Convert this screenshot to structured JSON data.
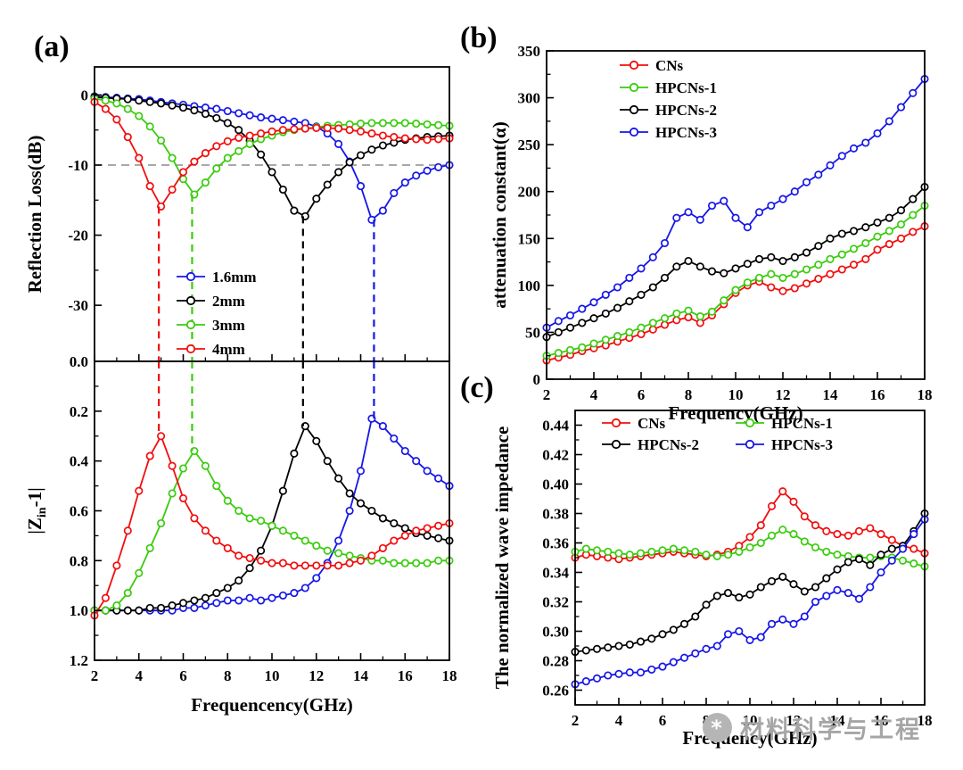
{
  "panels": {
    "a_label": "(a)",
    "b_label": "(b)",
    "c_label": "(c)"
  },
  "watermark": {
    "text": "材料科学与工程",
    "icon": "circle-star-logo",
    "color": "#a6a6a6"
  },
  "palette": {
    "red": "#f20d0d",
    "green": "#39cc0d",
    "blue": "#1616e8",
    "black": "#000000",
    "ref_gray": "#8c8c8c"
  },
  "chart_data": [
    {
      "id": "chart-rl",
      "type": "line",
      "title": "",
      "xlabel": "",
      "ylabel": "Reflection Loss(dB)",
      "xlim": [
        2,
        18
      ],
      "x_ticks": [
        2,
        4,
        6,
        8,
        10,
        12,
        14,
        16,
        18
      ],
      "x_tick_labels": [],
      "y_top": 4,
      "y_bottom": -38,
      "y_ticks": [
        0,
        -10,
        -20,
        -30
      ],
      "y_tick_labels": [
        "0",
        "-10",
        "-20",
        "-30"
      ],
      "grid": false,
      "legend_position": "center-left",
      "x_start": 2,
      "x_step": 0.5,
      "ref_lines": [
        {
          "type": "h",
          "y": -10,
          "color": "#8c8c8c"
        }
      ],
      "vlines": [
        {
          "x": 4.9,
          "y": -15.9,
          "from_edge": "bottom",
          "color": "#f20d0d"
        },
        {
          "x": 6.4,
          "y": -14.2,
          "from_edge": "bottom",
          "color": "#39cc0d"
        },
        {
          "x": 11.4,
          "y": -17.3,
          "from_edge": "bottom",
          "color": "#000000"
        },
        {
          "x": 14.6,
          "y": -17.8,
          "from_edge": "bottom",
          "color": "#1616e8"
        }
      ],
      "series": [
        {
          "name": "1.6mm",
          "color": "#1616e8",
          "values": [
            -0.2,
            -0.3,
            -0.4,
            -0.5,
            -0.6,
            -0.8,
            -1,
            -1.2,
            -1.4,
            -1.6,
            -1.8,
            -2,
            -2.3,
            -2.6,
            -2.9,
            -3.2,
            -3.4,
            -3.6,
            -3.8,
            -4,
            -4.5,
            -5.5,
            -7,
            -9.5,
            -13,
            -17.8,
            -16.5,
            -14,
            -12.5,
            -11.5,
            -10.8,
            -10.3,
            -10
          ]
        },
        {
          "name": "2mm",
          "color": "#000000",
          "values": [
            -0.3,
            -0.4,
            -0.5,
            -0.6,
            -0.8,
            -1,
            -1.2,
            -1.5,
            -1.8,
            -2.2,
            -2.7,
            -3.3,
            -4,
            -5,
            -6.5,
            -8.5,
            -11,
            -13.5,
            -16.5,
            -17.3,
            -14.8,
            -12.8,
            -11,
            -9.6,
            -8.6,
            -7.8,
            -7.2,
            -6.8,
            -6.4,
            -6.2,
            -6,
            -5.9,
            -5.8
          ]
        },
        {
          "name": "3mm",
          "color": "#39cc0d",
          "values": [
            -0.5,
            -0.8,
            -1.2,
            -2,
            -3,
            -4.5,
            -6.5,
            -9,
            -12,
            -14.2,
            -12.5,
            -10.5,
            -9,
            -8,
            -7,
            -6.3,
            -5.8,
            -5.3,
            -5,
            -4.8,
            -4.6,
            -4.4,
            -4.3,
            -4.2,
            -4.1,
            -4,
            -4,
            -4,
            -4,
            -4.1,
            -4.2,
            -4.3,
            -4.4
          ]
        },
        {
          "name": "4mm",
          "color": "#f20d0d",
          "values": [
            -1,
            -2,
            -3.5,
            -6,
            -9,
            -13,
            -15.9,
            -13.5,
            -11,
            -9.5,
            -8.3,
            -7.3,
            -6.6,
            -6.1,
            -5.8,
            -5.5,
            -5.2,
            -5,
            -4.9,
            -4.8,
            -4.7,
            -4.7,
            -4.8,
            -5,
            -5.2,
            -5.5,
            -5.8,
            -6,
            -6.2,
            -6.3,
            -6.4,
            -6.3,
            -6.2
          ]
        }
      ]
    },
    {
      "id": "chart-zin",
      "type": "line",
      "title": "",
      "xlabel": "Frequencency(GHz)",
      "ylabel": "|Zin-1|",
      "ylabel_parts": {
        "pre": "|Z",
        "sub": "in",
        "post": "-1|"
      },
      "xlim": [
        2,
        18
      ],
      "x_ticks": [
        2,
        4,
        6,
        8,
        10,
        12,
        14,
        16,
        18
      ],
      "x_tick_labels": [
        "2",
        "4",
        "6",
        "8",
        "10",
        "12",
        "14",
        "16",
        "18"
      ],
      "y_top": 0,
      "y_bottom": 1.2,
      "y_ticks": [
        0,
        0.2,
        0.4,
        0.6,
        0.8,
        1,
        1.2
      ],
      "y_tick_labels": [
        "0.0",
        "0.2",
        "0.4",
        "0.6",
        "0.8",
        "1.0",
        "1.2"
      ],
      "grid": false,
      "legend_position": "none",
      "x_start": 2,
      "x_step": 0.5,
      "ref_lines": [],
      "vlines": [
        {
          "x": 4.9,
          "y": 0.3,
          "from_edge": "top",
          "color": "#f20d0d"
        },
        {
          "x": 6.4,
          "y": 0.36,
          "from_edge": "top",
          "color": "#39cc0d"
        },
        {
          "x": 11.4,
          "y": 0.26,
          "from_edge": "top",
          "color": "#000000"
        },
        {
          "x": 14.6,
          "y": 0.23,
          "from_edge": "top",
          "color": "#1616e8"
        }
      ],
      "series": [
        {
          "name": "1.6mm",
          "color": "#1616e8",
          "values": [
            1,
            1,
            1,
            1,
            1,
            1,
            1,
            1,
            0.99,
            0.99,
            0.98,
            0.97,
            0.96,
            0.96,
            0.95,
            0.96,
            0.95,
            0.94,
            0.93,
            0.91,
            0.87,
            0.81,
            0.72,
            0.6,
            0.44,
            0.23,
            0.26,
            0.31,
            0.36,
            0.4,
            0.44,
            0.47,
            0.5
          ]
        },
        {
          "name": "2mm",
          "color": "#000000",
          "values": [
            1,
            1,
            1,
            1,
            1,
            0.99,
            0.99,
            0.98,
            0.97,
            0.96,
            0.95,
            0.93,
            0.91,
            0.88,
            0.83,
            0.76,
            0.66,
            0.52,
            0.37,
            0.26,
            0.32,
            0.4,
            0.47,
            0.53,
            0.57,
            0.6,
            0.63,
            0.65,
            0.67,
            0.69,
            0.7,
            0.71,
            0.72
          ]
        },
        {
          "name": "3mm",
          "color": "#39cc0d",
          "values": [
            1,
            1,
            0.98,
            0.93,
            0.85,
            0.75,
            0.65,
            0.53,
            0.43,
            0.36,
            0.42,
            0.5,
            0.56,
            0.6,
            0.63,
            0.64,
            0.66,
            0.68,
            0.7,
            0.72,
            0.74,
            0.76,
            0.77,
            0.78,
            0.79,
            0.8,
            0.8,
            0.81,
            0.81,
            0.81,
            0.81,
            0.8,
            0.8
          ]
        },
        {
          "name": "4mm",
          "color": "#f20d0d",
          "values": [
            1.02,
            0.95,
            0.82,
            0.68,
            0.52,
            0.38,
            0.3,
            0.42,
            0.55,
            0.63,
            0.68,
            0.72,
            0.75,
            0.78,
            0.79,
            0.8,
            0.81,
            0.81,
            0.82,
            0.82,
            0.82,
            0.82,
            0.82,
            0.81,
            0.8,
            0.78,
            0.75,
            0.72,
            0.7,
            0.68,
            0.67,
            0.66,
            0.65
          ]
        }
      ]
    },
    {
      "id": "chart-attenuation",
      "type": "line",
      "title": "",
      "xlabel": "Frequency(GHz)",
      "ylabel": "attenuation constant(α)",
      "xlim": [
        2,
        18
      ],
      "x_ticks": [
        2,
        4,
        6,
        8,
        10,
        12,
        14,
        16,
        18
      ],
      "x_tick_labels": [
        "2",
        "4",
        "6",
        "8",
        "10",
        "12",
        "14",
        "16",
        "18"
      ],
      "y_top": 350,
      "y_bottom": 0,
      "y_ticks": [
        0,
        50,
        100,
        150,
        200,
        250,
        300,
        350
      ],
      "y_tick_labels": [
        "0",
        "50",
        "100",
        "150",
        "200",
        "250",
        "300",
        "350"
      ],
      "grid": false,
      "legend_position": "top-left",
      "x_start": 2,
      "x_step": 0.5,
      "ref_lines": [],
      "vlines": [],
      "series": [
        {
          "name": "CNs",
          "color": "#f20d0d",
          "values": [
            20,
            23,
            26,
            30,
            33,
            36,
            40,
            44,
            48,
            53,
            58,
            63,
            66,
            60,
            68,
            80,
            92,
            100,
            104,
            98,
            94,
            97,
            102,
            107,
            112,
            117,
            122,
            128,
            138,
            144,
            150,
            157,
            163
          ]
        },
        {
          "name": "HPCNs-1",
          "color": "#39cc0d",
          "values": [
            25,
            28,
            31,
            34,
            38,
            42,
            46,
            50,
            55,
            60,
            65,
            70,
            73,
            67,
            72,
            84,
            95,
            103,
            108,
            112,
            108,
            112,
            117,
            122,
            128,
            133,
            139,
            145,
            152,
            158,
            165,
            175,
            185
          ]
        },
        {
          "name": "HPCNs-2",
          "color": "#000000",
          "values": [
            45,
            50,
            55,
            60,
            65,
            70,
            76,
            83,
            90,
            98,
            108,
            120,
            126,
            120,
            115,
            113,
            118,
            123,
            128,
            130,
            126,
            130,
            135,
            142,
            150,
            155,
            158,
            162,
            167,
            172,
            180,
            192,
            205
          ]
        },
        {
          "name": "HPCNs-3",
          "color": "#1616e8",
          "values": [
            55,
            62,
            68,
            75,
            82,
            90,
            98,
            108,
            118,
            130,
            145,
            172,
            178,
            170,
            185,
            190,
            172,
            162,
            178,
            185,
            192,
            200,
            210,
            218,
            228,
            238,
            246,
            252,
            262,
            275,
            290,
            305,
            320
          ]
        }
      ]
    },
    {
      "id": "chart-impedance",
      "type": "line",
      "title": "",
      "xlabel": "Frequency(GHz)",
      "ylabel": "The normalized wave impedance",
      "xlim": [
        2,
        18
      ],
      "x_ticks": [
        2,
        4,
        6,
        8,
        10,
        12,
        14,
        16,
        18
      ],
      "x_tick_labels": [
        "2",
        "4",
        "6",
        "8",
        "10",
        "12",
        "14",
        "16",
        "18"
      ],
      "y_top": 0.45,
      "y_bottom": 0.25,
      "y_ticks": [
        0.26,
        0.28,
        0.3,
        0.32,
        0.34,
        0.36,
        0.38,
        0.4,
        0.42,
        0.44
      ],
      "y_tick_labels": [
        "0.26",
        "0.28",
        "0.30",
        "0.32",
        "0.34",
        "0.36",
        "0.38",
        "0.40",
        "0.42",
        "0.44"
      ],
      "grid": false,
      "legend_position": "top-center-2col",
      "x_start": 2,
      "x_step": 0.5,
      "ref_lines": [],
      "vlines": [],
      "series": [
        {
          "name": "CNs",
          "color": "#f20d0d",
          "values": [
            0.35,
            0.352,
            0.351,
            0.35,
            0.349,
            0.35,
            0.351,
            0.352,
            0.353,
            0.354,
            0.353,
            0.352,
            0.351,
            0.352,
            0.354,
            0.358,
            0.364,
            0.372,
            0.385,
            0.395,
            0.388,
            0.378,
            0.372,
            0.368,
            0.366,
            0.365,
            0.368,
            0.37,
            0.366,
            0.362,
            0.358,
            0.356,
            0.353
          ]
        },
        {
          "name": "HPCNs-1",
          "color": "#39cc0d",
          "values": [
            0.354,
            0.356,
            0.355,
            0.354,
            0.353,
            0.352,
            0.353,
            0.354,
            0.355,
            0.356,
            0.355,
            0.354,
            0.352,
            0.351,
            0.352,
            0.354,
            0.357,
            0.36,
            0.365,
            0.369,
            0.366,
            0.361,
            0.357,
            0.354,
            0.352,
            0.351,
            0.35,
            0.35,
            0.351,
            0.35,
            0.348,
            0.346,
            0.344
          ]
        },
        {
          "name": "HPCNs-2",
          "color": "#000000",
          "values": [
            0.286,
            0.287,
            0.288,
            0.289,
            0.29,
            0.291,
            0.293,
            0.295,
            0.298,
            0.301,
            0.305,
            0.31,
            0.318,
            0.324,
            0.326,
            0.323,
            0.325,
            0.33,
            0.334,
            0.337,
            0.332,
            0.327,
            0.33,
            0.336,
            0.342,
            0.347,
            0.349,
            0.345,
            0.352,
            0.356,
            0.358,
            0.368,
            0.38
          ]
        },
        {
          "name": "HPCNs-3",
          "color": "#1616e8",
          "values": [
            0.264,
            0.266,
            0.268,
            0.27,
            0.271,
            0.272,
            0.272,
            0.274,
            0.276,
            0.279,
            0.282,
            0.285,
            0.288,
            0.29,
            0.298,
            0.3,
            0.294,
            0.296,
            0.305,
            0.308,
            0.305,
            0.31,
            0.32,
            0.324,
            0.328,
            0.326,
            0.322,
            0.33,
            0.34,
            0.348,
            0.356,
            0.366,
            0.376
          ]
        }
      ]
    }
  ]
}
